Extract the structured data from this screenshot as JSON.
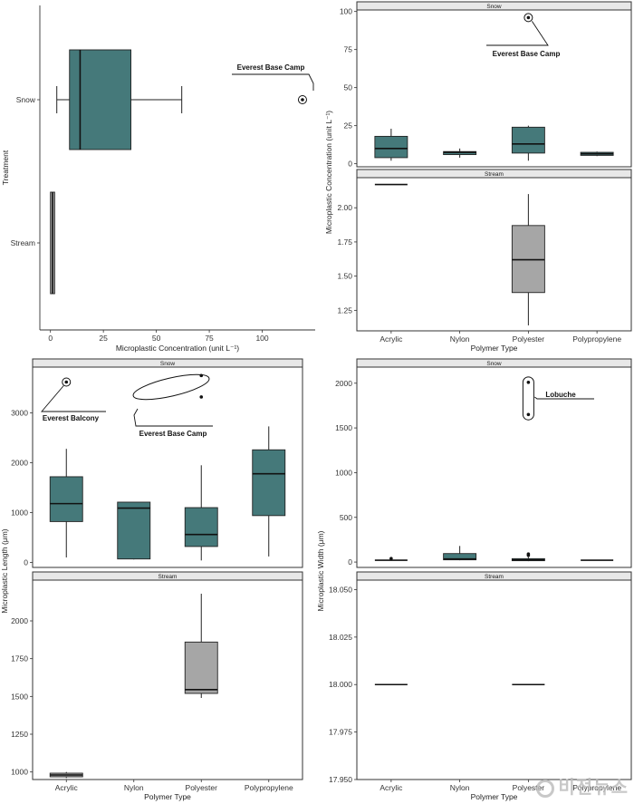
{
  "colors": {
    "snow": "#45797a",
    "stream": "#a6a6a6"
  },
  "chart_data": [
    {
      "id": "A",
      "type": "boxplot",
      "orientation": "horizontal",
      "xlabel": "Microplastic Concentration (unit L⁻¹)",
      "ylabel": "Treatment",
      "xlim": [
        -5,
        125
      ],
      "xticks": [
        0,
        25,
        50,
        75,
        100
      ],
      "categories": [
        "Snow",
        "Stream"
      ],
      "boxes": [
        {
          "category": "Snow",
          "min": 3,
          "q1": 9,
          "median": 14,
          "q3": 38,
          "max": 62,
          "outliers": [
            119
          ]
        },
        {
          "category": "Stream",
          "min": 0,
          "q1": 0,
          "median": 1,
          "q3": 2,
          "max": 2,
          "outliers": []
        }
      ],
      "annotations": [
        {
          "text": "Everest Base Camp",
          "x": 119,
          "y": "Snow"
        }
      ]
    },
    {
      "id": "B-snow",
      "type": "boxplot",
      "strip": "Snow",
      "ylabel": "Microplastic Concentration (unit L⁻¹)",
      "ylim": [
        -2,
        101
      ],
      "yticks": [
        0,
        25,
        50,
        75,
        100
      ],
      "categories": [
        "Acrylic",
        "Nylon",
        "Polyester",
        "Polypropylene"
      ],
      "boxes": [
        {
          "category": "Acrylic",
          "min": 2,
          "q1": 4,
          "median": 10,
          "q3": 18,
          "max": 23,
          "outliers": []
        },
        {
          "category": "Nylon",
          "min": 4,
          "q1": 6,
          "median": 7.5,
          "q3": 8,
          "max": 10,
          "outliers": []
        },
        {
          "category": "Polyester",
          "min": 2,
          "q1": 7,
          "median": 13,
          "q3": 24,
          "max": 25,
          "outliers": [
            96
          ]
        },
        {
          "category": "Polypropylene",
          "min": 5,
          "q1": 5.5,
          "median": 6.5,
          "q3": 7.5,
          "max": 8,
          "outliers": []
        }
      ],
      "annotations": [
        {
          "text": "Everest Base Camp",
          "x": "Polyester",
          "y": 96
        }
      ]
    },
    {
      "id": "B-stream",
      "type": "boxplot",
      "strip": "Stream",
      "xlabel": "Polymer Type",
      "ylim": [
        1.1,
        2.22
      ],
      "yticks": [
        1.25,
        1.5,
        1.75,
        2.0
      ],
      "ytick_labels": [
        "1.25",
        "1.50",
        "1.75",
        "2.00"
      ],
      "categories": [
        "Acrylic",
        "Nylon",
        "Polyester",
        "Polypropylene"
      ],
      "boxes": [
        {
          "category": "Acrylic",
          "min": 2.17,
          "q1": 2.17,
          "median": 2.17,
          "q3": 2.17,
          "max": 2.17,
          "outliers": []
        },
        {
          "category": "Polyester",
          "min": 1.14,
          "q1": 1.38,
          "median": 1.62,
          "q3": 1.87,
          "max": 2.1,
          "outliers": []
        }
      ]
    },
    {
      "id": "C-snow",
      "type": "boxplot",
      "strip": "Snow",
      "ylabel": "Microplastic Length (μm)",
      "ylim": [
        -100,
        3920
      ],
      "yticks": [
        0,
        1000,
        2000,
        3000
      ],
      "categories": [
        "Acrylic",
        "Nylon",
        "Polyester",
        "Polypropylene"
      ],
      "boxes": [
        {
          "category": "Acrylic",
          "min": 100,
          "q1": 820,
          "median": 1180,
          "q3": 1720,
          "max": 2280,
          "outliers": [
            3620
          ]
        },
        {
          "category": "Nylon",
          "min": 60,
          "q1": 70,
          "median": 1090,
          "q3": 1210,
          "max": 1210,
          "outliers": []
        },
        {
          "category": "Polyester",
          "min": 40,
          "q1": 320,
          "median": 560,
          "q3": 1100,
          "max": 1950,
          "outliers": [
            3320,
            3750
          ]
        },
        {
          "category": "Polypropylene",
          "min": 120,
          "q1": 940,
          "median": 1780,
          "q3": 2260,
          "max": 2730,
          "outliers": []
        }
      ],
      "annotations": [
        {
          "text": "Everest Balcony",
          "x": "Acrylic",
          "y": 3620
        },
        {
          "text": "Everest Base Camp",
          "x": "Polyester",
          "y": 3540
        }
      ]
    },
    {
      "id": "C-stream",
      "type": "boxplot",
      "strip": "Stream",
      "xlabel": "Polymer Type",
      "ylim": [
        950,
        2270
      ],
      "yticks": [
        1000,
        1250,
        1500,
        1750,
        2000
      ],
      "categories": [
        "Acrylic",
        "Nylon",
        "Polyester",
        "Polypropylene"
      ],
      "boxes": [
        {
          "category": "Acrylic",
          "min": 960,
          "q1": 968,
          "median": 980,
          "q3": 992,
          "max": 1000,
          "outliers": []
        },
        {
          "category": "Polyester",
          "min": 1490,
          "q1": 1520,
          "median": 1545,
          "q3": 1860,
          "max": 2180,
          "outliers": []
        }
      ]
    },
    {
      "id": "D-snow",
      "type": "boxplot",
      "strip": "Snow",
      "ylabel": "Microplastic Width (μm)",
      "ylim": [
        -60,
        2180
      ],
      "yticks": [
        0,
        500,
        1000,
        1500,
        2000
      ],
      "categories": [
        "Acrylic",
        "Nylon",
        "Polyester",
        "Polypropylene"
      ],
      "boxes": [
        {
          "category": "Acrylic",
          "min": 15,
          "q1": 18,
          "median": 20,
          "q3": 24,
          "max": 28,
          "outliers": [
            40
          ]
        },
        {
          "category": "Nylon",
          "min": 20,
          "q1": 25,
          "median": 35,
          "q3": 95,
          "max": 180,
          "outliers": []
        },
        {
          "category": "Polyester",
          "min": 10,
          "q1": 15,
          "median": 25,
          "q3": 38,
          "max": 55,
          "outliers": [
            75,
            90,
            1650,
            2010
          ]
        },
        {
          "category": "Polypropylene",
          "min": 18,
          "q1": 19,
          "median": 20,
          "q3": 21,
          "max": 22,
          "outliers": []
        }
      ],
      "annotations": [
        {
          "text": "Lobuche",
          "x": "Polyester",
          "y": 1830
        }
      ]
    },
    {
      "id": "D-stream",
      "type": "boxplot",
      "strip": "Stream",
      "xlabel": "Polymer Type",
      "ylim": [
        17.95,
        18.055
      ],
      "yticks": [
        17.95,
        17.975,
        18.0,
        18.025,
        18.05
      ],
      "ytick_labels": [
        "17.950",
        "17.975",
        "18.000",
        "18.025",
        "18.050"
      ],
      "categories": [
        "Acrylic",
        "Nylon",
        "Polyester",
        "Polypropylene"
      ],
      "boxes": [
        {
          "category": "Acrylic",
          "min": 18.0,
          "q1": 18.0,
          "median": 18.0,
          "q3": 18.0,
          "max": 18.0,
          "outliers": []
        },
        {
          "category": "Polyester",
          "min": 18.0,
          "q1": 18.0,
          "median": 18.0,
          "q3": 18.0,
          "max": 18.0,
          "outliers": []
        }
      ]
    }
  ],
  "watermark": "비전뉴스"
}
